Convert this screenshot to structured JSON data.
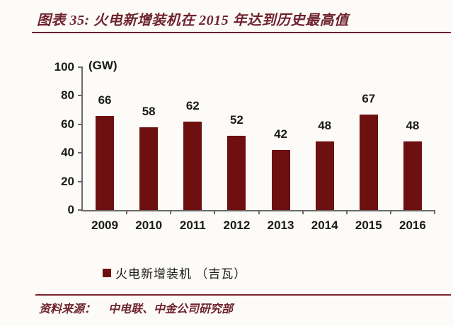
{
  "header": {
    "title": "图表 35: 火电新增装机在 2015 年达到历史最高值"
  },
  "chart_data": {
    "type": "bar",
    "categories": [
      "2009",
      "2010",
      "2011",
      "2012",
      "2013",
      "2014",
      "2015",
      "2016"
    ],
    "values": [
      66,
      58,
      62,
      52,
      42,
      48,
      67,
      48
    ],
    "title": "火电新增装机在 2015 年达到历史最高值",
    "xlabel": "",
    "ylabel": "(GW)",
    "ylim": [
      0,
      100
    ],
    "yticks": [
      0,
      20,
      40,
      60,
      80,
      100
    ],
    "grid": false,
    "value_labels_shown": true,
    "legend_position": "bottom",
    "bar_color": "#6E0F10"
  },
  "legend": {
    "label": "火电新增装机 （吉瓦）",
    "swatch_color": "#6E0F10"
  },
  "footer": {
    "source_label": "资料来源：",
    "source_value": "中电联、中金公司研究部"
  },
  "colors": {
    "accent_maroon": "#6F2430",
    "rule_maroon": "#7B2430",
    "bar": "#6E0F10",
    "axis": "#6A6A6A",
    "text": "#1A1A1A",
    "background": "#FDFBF7"
  }
}
